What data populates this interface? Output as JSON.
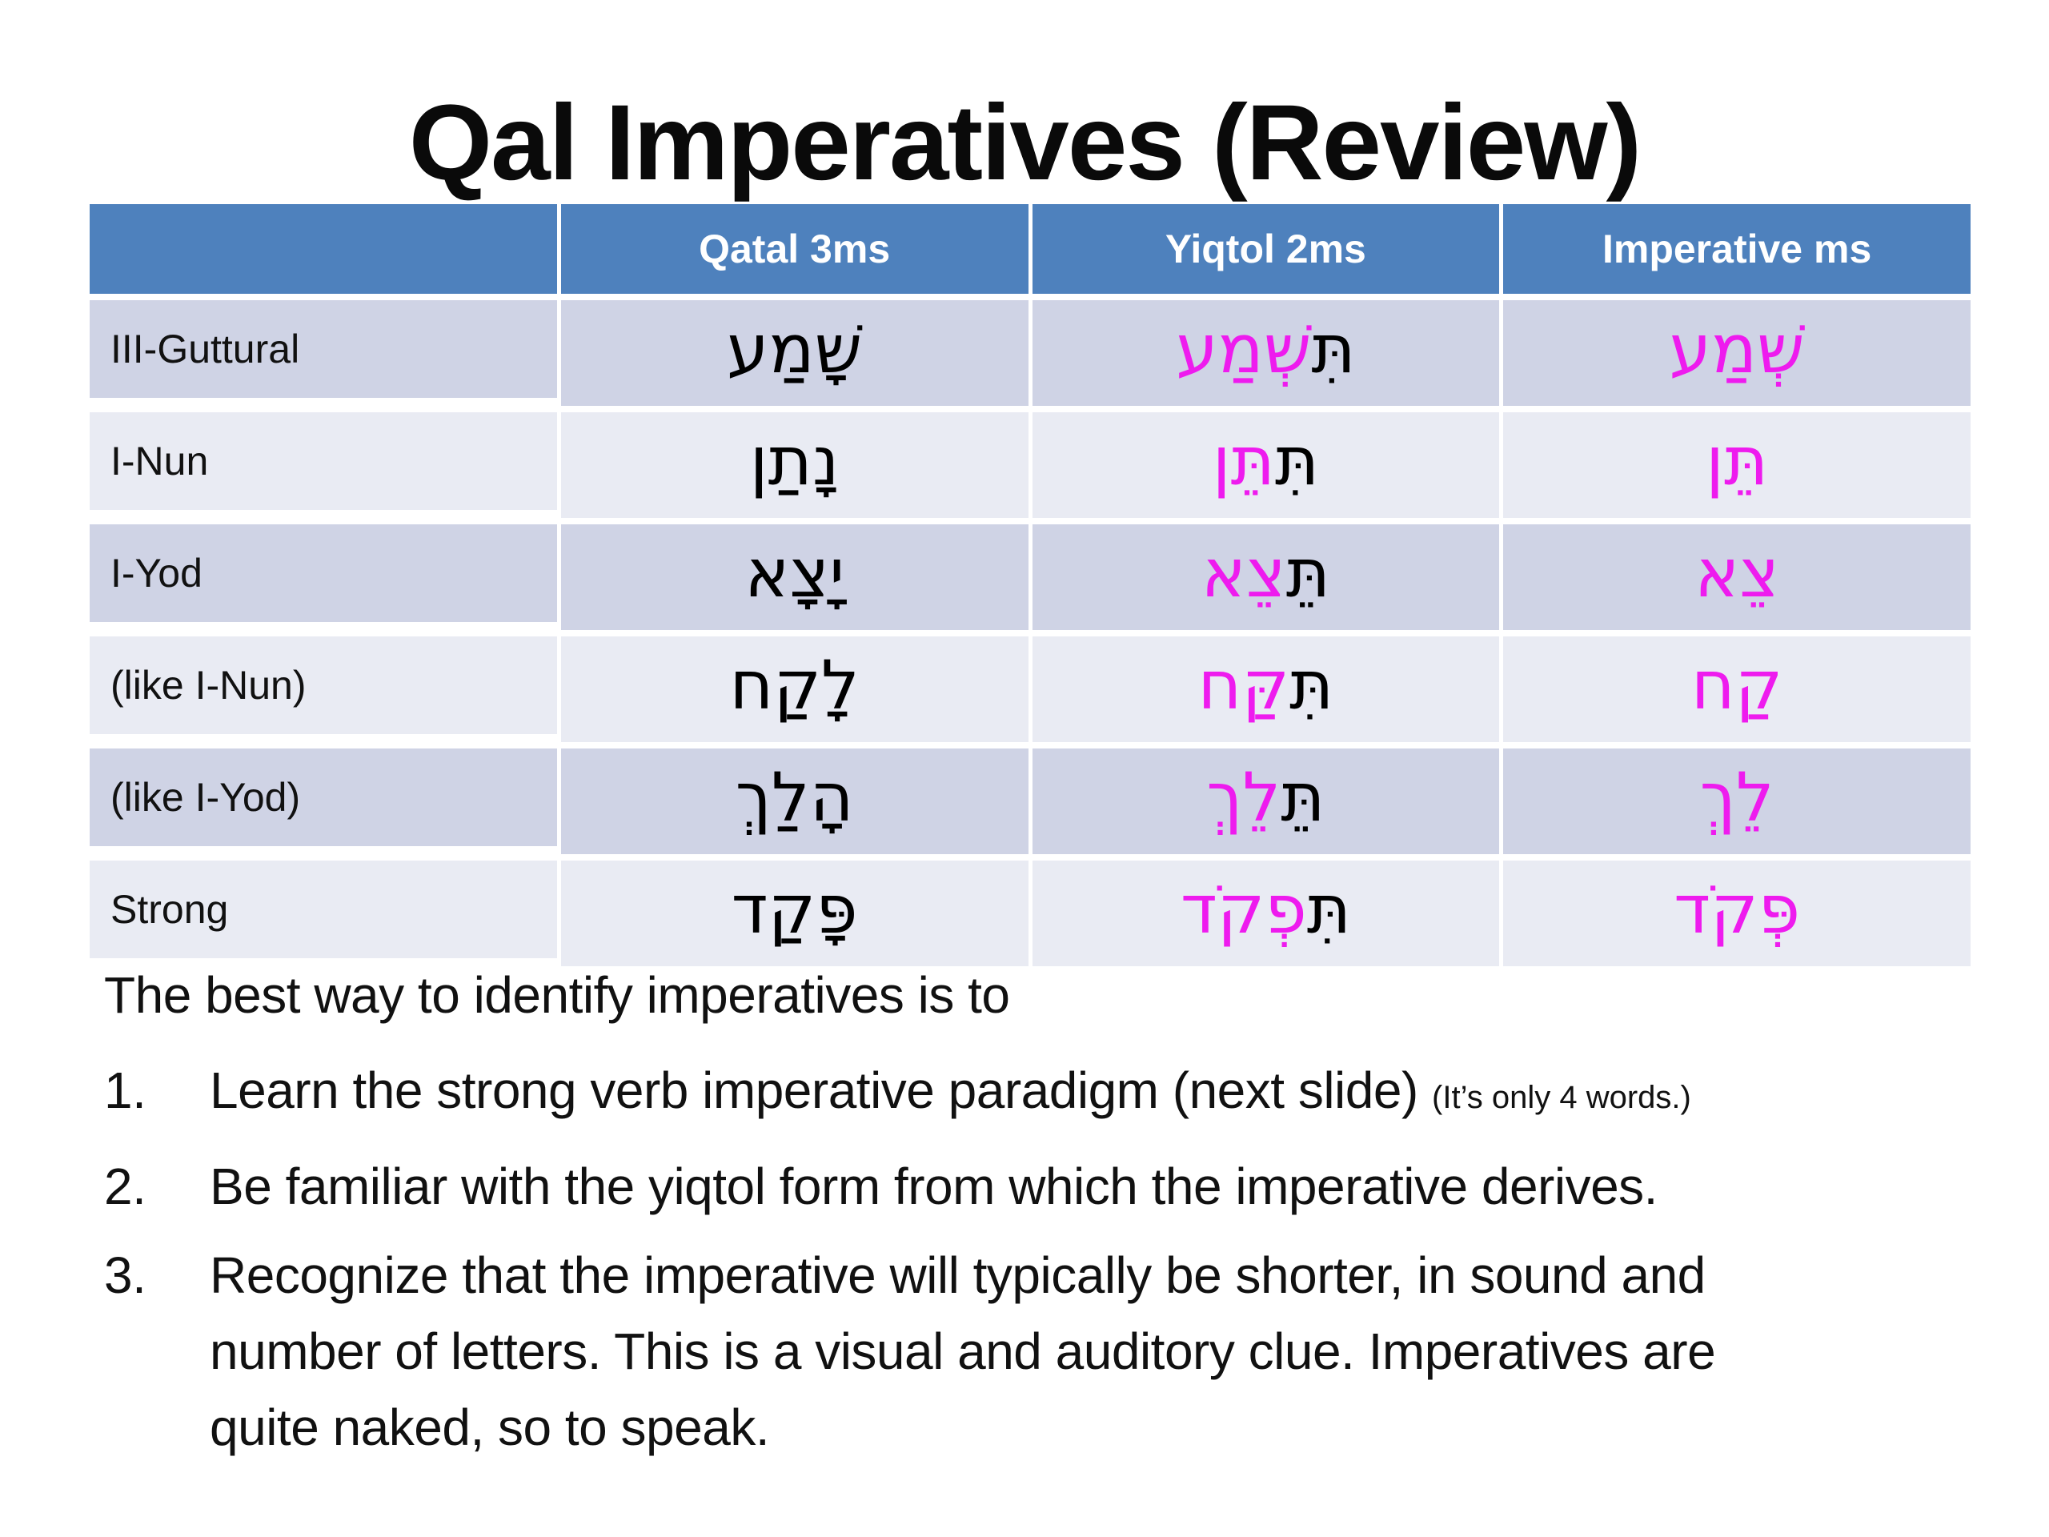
{
  "slide": {
    "title": "Qal Imperatives (Review)"
  },
  "colors": {
    "header_bg": "#4E81BD",
    "header_text": "#FFFFFF",
    "row_dark": "#CFD3E5",
    "row_light": "#E9EBF3",
    "hebrew_black": "#000000",
    "hebrew_magenta": "#EE1BEE",
    "body_text": "#111111"
  },
  "table": {
    "headers": {
      "col0": "",
      "col1": "Qatal 3ms",
      "col2": "Yiqtol 2ms",
      "col3": "Imperative ms"
    },
    "rows": [
      {
        "label": "III-Guttural",
        "qatal": "שָׁמַע",
        "yiqtol_prefix": "תִּ",
        "yiqtol_rest": "שְׁמַע",
        "imperative": "שְׁמַע"
      },
      {
        "label": "I-Nun",
        "qatal": "נָתַן",
        "yiqtol_prefix": "תִּ",
        "yiqtol_rest": "תֵּן",
        "imperative": "תֵּן"
      },
      {
        "label": "I-Yod",
        "qatal": "יָצָא",
        "yiqtol_prefix": "תֵּ",
        "yiqtol_rest": "צֵא",
        "imperative": "צֵא"
      },
      {
        "label": "(like I-Nun)",
        "qatal": "לָקַח",
        "yiqtol_prefix": "תִּ",
        "yiqtol_rest": "קַּח",
        "imperative": "קַח"
      },
      {
        "label": "(like I-Yod)",
        "qatal": "הָלַךְ",
        "yiqtol_prefix": "תֵּ",
        "yiqtol_rest": "לֵךְ",
        "imperative": "לֵךְ"
      },
      {
        "label": "Strong",
        "qatal": "פָּקַד",
        "yiqtol_prefix": "תִּ",
        "yiqtol_rest": "פְקֹד",
        "imperative": "פְּקֹד"
      }
    ]
  },
  "notes": {
    "intro": "The best way to identify imperatives is to",
    "items": [
      {
        "number": "1.",
        "text": "Learn the strong verb imperative paradigm (next slide) ",
        "aside": "(It’s only 4 words.)"
      },
      {
        "number": "2.",
        "text": "Be familiar with the yiqtol form from which the imperative derives."
      },
      {
        "number": "3.",
        "lines": [
          "Recognize that the imperative will typically be shorter, in sound and",
          "number of letters. This is a visual and auditory clue. Imperatives are",
          "quite naked, so to speak."
        ]
      }
    ]
  }
}
